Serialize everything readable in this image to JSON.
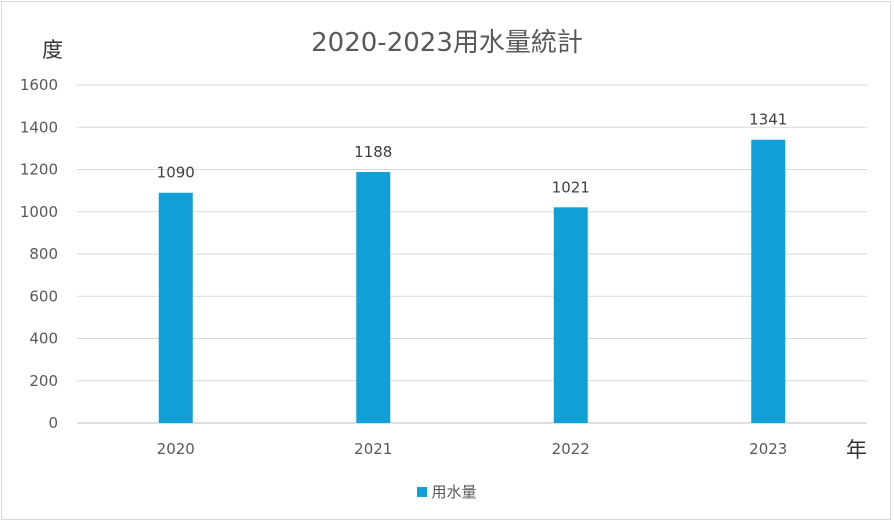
{
  "chart_data": {
    "type": "bar",
    "title": "2020-2023用水量統計",
    "ylabel": "度",
    "xlabel": "年",
    "categories": [
      "2020",
      "2021",
      "2022",
      "2023"
    ],
    "series": [
      {
        "name": "用水量",
        "values": [
          1090,
          1188,
          1021,
          1341
        ],
        "color": "#119fd8"
      }
    ],
    "ylim": [
      0,
      1600
    ],
    "yticks": [
      0,
      200,
      400,
      600,
      800,
      1000,
      1200,
      1400,
      1600
    ],
    "grid": true,
    "legend_position": "bottom"
  }
}
